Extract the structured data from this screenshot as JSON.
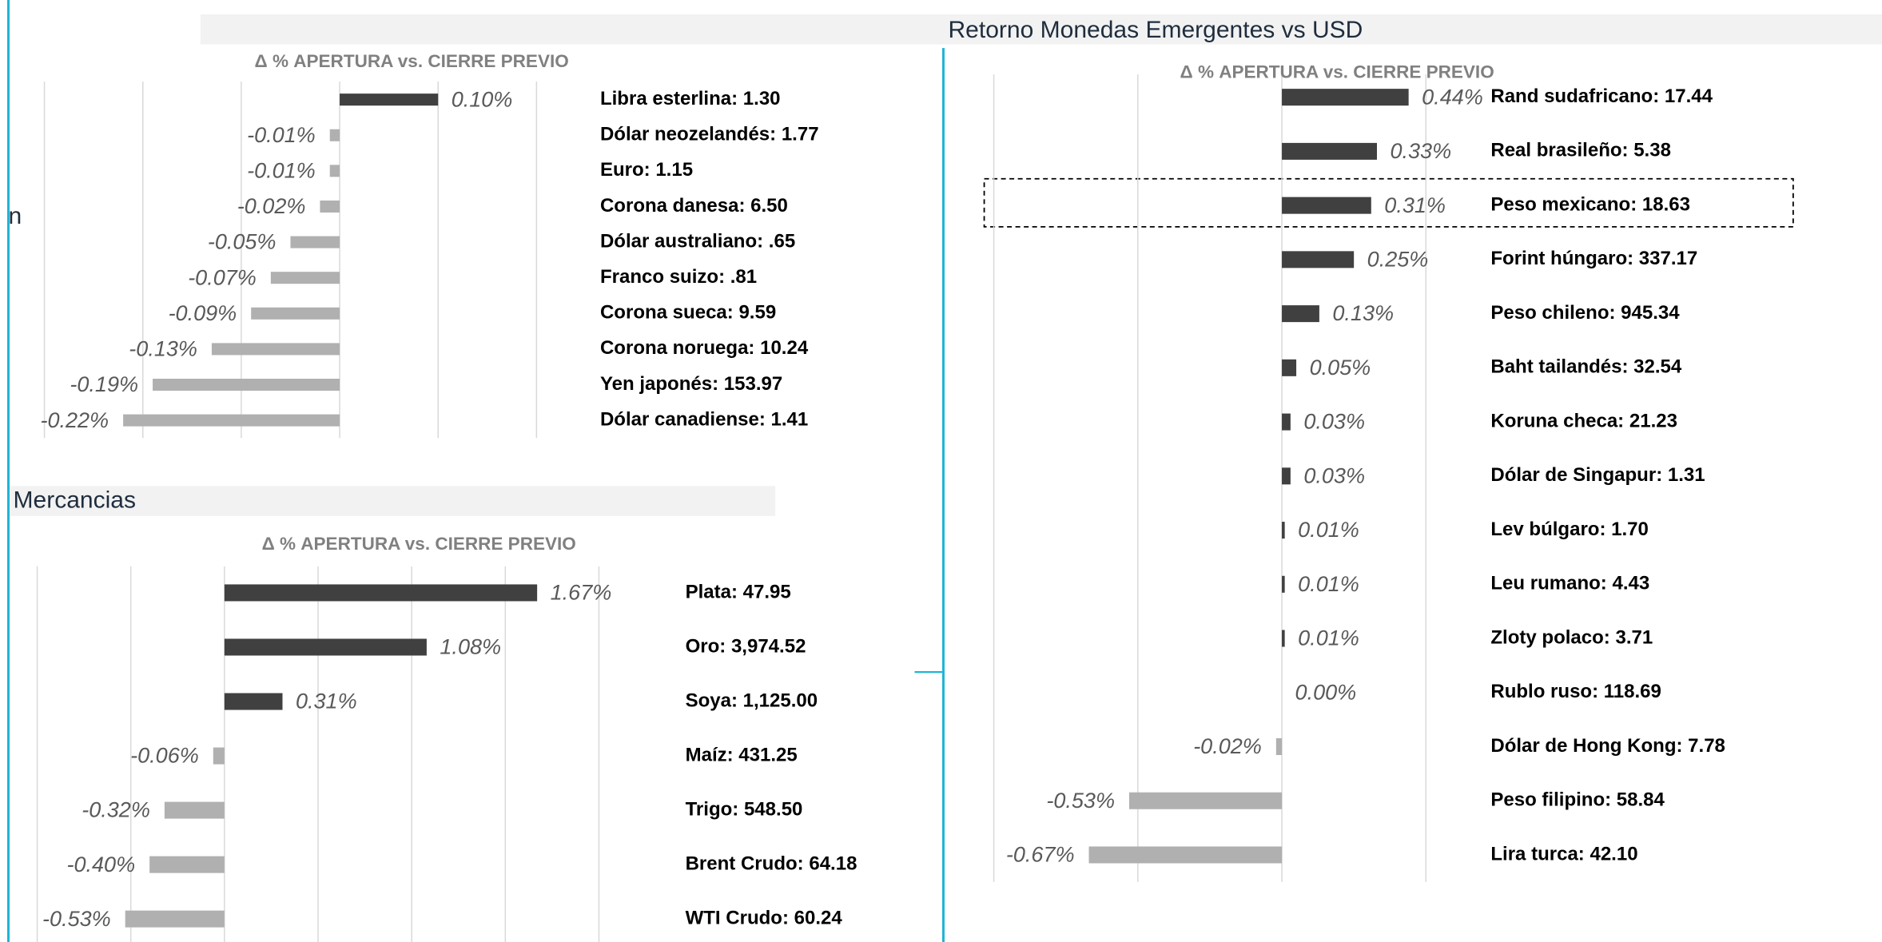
{
  "headers": {
    "top": "Retorno Monedas Emergentes vs USD",
    "side": "n",
    "commodities": "Mercancias"
  },
  "chart_data": [
    {
      "type": "bar",
      "orientation": "horizontal",
      "title": "Δ % APERTURA vs. CIERRE PREVIO",
      "categories": [
        "Libra esterlina: 1.30",
        "Dólar neozelandés: 1.77",
        "Euro: 1.15",
        "Corona danesa: 6.50",
        "Dólar australiano: .65",
        "Franco suizo: .81",
        "Corona sueca: 9.59",
        "Corona noruega: 10.24",
        "Yen japonés: 153.97",
        "Dólar canadiense: 1.41"
      ],
      "values": [
        0.1,
        -0.01,
        -0.01,
        -0.02,
        -0.05,
        -0.07,
        -0.09,
        -0.13,
        -0.19,
        -0.22
      ],
      "value_labels": [
        "0.10%",
        "-0.01%",
        "-0.01%",
        "-0.02%",
        "-0.05%",
        "-0.07%",
        "-0.09%",
        "-0.13%",
        "-0.19%",
        "-0.22%"
      ],
      "colors": {
        "positive": "#404040",
        "negative": "#b0b0b0"
      },
      "xlim": [
        -0.3,
        0.2
      ],
      "xticks": [
        -0.3,
        -0.2,
        -0.1,
        0,
        0.1,
        0.2
      ],
      "grid": true
    },
    {
      "type": "bar",
      "orientation": "horizontal",
      "title": "Δ % APERTURA vs. CIERRE PREVIO",
      "categories": [
        "Rand sudafricano: 17.44",
        "Real brasileño: 5.38",
        "Peso mexicano: 18.63",
        "Forint húngaro: 337.17",
        "Peso chileno: 945.34",
        "Baht tailandés: 32.54",
        "Koruna checa: 21.23",
        "Dólar de Singapur: 1.31",
        "Lev búlgaro: 1.70",
        "Leu rumano: 4.43",
        "Zloty polaco: 3.71",
        "Rublo ruso: 118.69",
        "Dólar de Hong Kong: 7.78",
        "Peso filipino: 58.84",
        "Lira turca: 42.10"
      ],
      "values": [
        0.44,
        0.33,
        0.31,
        0.25,
        0.13,
        0.05,
        0.03,
        0.03,
        0.01,
        0.01,
        0.01,
        0.0,
        -0.02,
        -0.53,
        -0.67
      ],
      "value_labels": [
        "0.44%",
        "0.33%",
        "0.31%",
        "0.25%",
        "0.13%",
        "0.05%",
        "0.03%",
        "0.03%",
        "0.01%",
        "0.01%",
        "0.01%",
        "0.00%",
        "-0.02%",
        "-0.53%",
        "-0.67%"
      ],
      "colors": {
        "positive": "#404040",
        "negative": "#b0b0b0"
      },
      "xlim": [
        -1,
        0.5
      ],
      "xticks": [
        -1,
        -0.5,
        0,
        0.5
      ],
      "grid": true
    },
    {
      "type": "bar",
      "orientation": "horizontal",
      "title": "Δ % APERTURA vs. CIERRE PREVIO",
      "categories": [
        "Plata: 47.95",
        "Oro: 3,974.52",
        "Soya: 1,125.00",
        "Maíz: 431.25",
        "Trigo: 548.50",
        "Brent Crudo: 64.18",
        "WTI Crudo: 60.24"
      ],
      "values": [
        1.67,
        1.08,
        0.31,
        -0.06,
        -0.32,
        -0.4,
        -0.53
      ],
      "value_labels": [
        "1.67%",
        "1.08%",
        "0.31%",
        "-0.06%",
        "-0.32%",
        "-0.40%",
        "-0.53%"
      ],
      "colors": {
        "positive": "#404040",
        "negative": "#b0b0b0"
      },
      "xlim": [
        -1,
        2
      ],
      "xticks": [
        -1,
        -0.5,
        0,
        0.5,
        1,
        1.5,
        2
      ],
      "grid": true
    }
  ]
}
